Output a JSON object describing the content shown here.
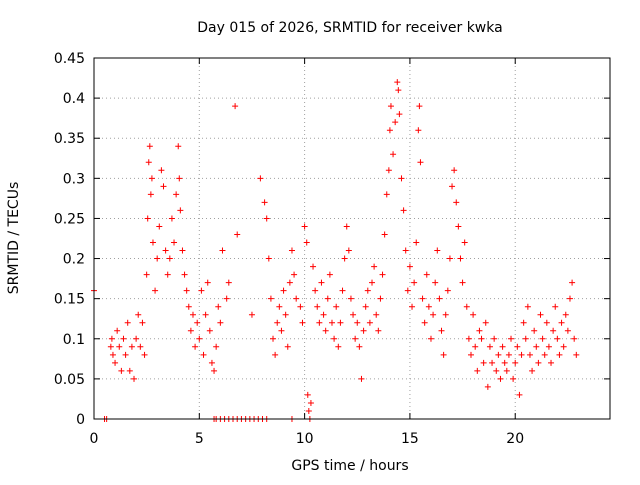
{
  "chart_data": {
    "type": "scatter",
    "title": "Day 015 of 2026, SRMTID for receiver kwka",
    "xlabel": "GPS time / hours",
    "ylabel": "SRMTID / TECUs",
    "xlim": [
      0,
      24.5
    ],
    "ylim": [
      0,
      0.45
    ],
    "x_ticks": [
      0,
      5,
      10,
      15,
      20
    ],
    "x_tick_labels": [
      "0",
      "5",
      "10",
      "15",
      "20"
    ],
    "y_ticks": [
      0,
      0.05,
      0.1,
      0.15,
      0.2,
      0.25,
      0.3,
      0.35,
      0.4,
      0.45
    ],
    "y_tick_labels": [
      "0",
      "0.05",
      "0.1",
      "0.15",
      "0.2",
      "0.25",
      "0.3",
      "0.35",
      "0.4",
      "0.45"
    ],
    "grid": true,
    "marker": "plus",
    "marker_color": "#ff0000",
    "series": [
      {
        "name": "SRMTID",
        "points": [
          [
            0.0,
            0.16
          ],
          [
            0.5,
            0.0
          ],
          [
            0.6,
            0.0
          ],
          [
            0.8,
            0.09
          ],
          [
            0.85,
            0.1
          ],
          [
            0.9,
            0.08
          ],
          [
            1.0,
            0.07
          ],
          [
            1.1,
            0.11
          ],
          [
            1.2,
            0.09
          ],
          [
            1.3,
            0.06
          ],
          [
            1.4,
            0.1
          ],
          [
            1.5,
            0.08
          ],
          [
            1.6,
            0.12
          ],
          [
            1.7,
            0.06
          ],
          [
            1.8,
            0.09
          ],
          [
            1.9,
            0.05
          ],
          [
            2.0,
            0.1
          ],
          [
            2.1,
            0.13
          ],
          [
            2.2,
            0.09
          ],
          [
            2.3,
            0.12
          ],
          [
            2.4,
            0.08
          ],
          [
            2.5,
            0.18
          ],
          [
            2.55,
            0.25
          ],
          [
            2.6,
            0.32
          ],
          [
            2.65,
            0.34
          ],
          [
            2.7,
            0.28
          ],
          [
            2.75,
            0.3
          ],
          [
            2.8,
            0.22
          ],
          [
            2.9,
            0.16
          ],
          [
            3.0,
            0.2
          ],
          [
            3.1,
            0.24
          ],
          [
            3.2,
            0.31
          ],
          [
            3.3,
            0.29
          ],
          [
            3.4,
            0.21
          ],
          [
            3.5,
            0.18
          ],
          [
            3.6,
            0.2
          ],
          [
            3.7,
            0.25
          ],
          [
            3.8,
            0.22
          ],
          [
            3.9,
            0.28
          ],
          [
            4.0,
            0.34
          ],
          [
            4.05,
            0.3
          ],
          [
            4.1,
            0.26
          ],
          [
            4.2,
            0.21
          ],
          [
            4.3,
            0.18
          ],
          [
            4.4,
            0.16
          ],
          [
            4.5,
            0.14
          ],
          [
            4.6,
            0.11
          ],
          [
            4.7,
            0.13
          ],
          [
            4.8,
            0.09
          ],
          [
            4.9,
            0.12
          ],
          [
            5.0,
            0.1
          ],
          [
            5.1,
            0.16
          ],
          [
            5.2,
            0.08
          ],
          [
            5.3,
            0.13
          ],
          [
            5.4,
            0.17
          ],
          [
            5.5,
            0.11
          ],
          [
            5.6,
            0.07
          ],
          [
            5.7,
            0.06
          ],
          [
            5.8,
            0.09
          ],
          [
            5.9,
            0.14
          ],
          [
            6.0,
            0.12
          ],
          [
            6.1,
            0.21
          ],
          [
            6.3,
            0.15
          ],
          [
            6.4,
            0.17
          ],
          [
            5.7,
            0.0
          ],
          [
            5.8,
            0.0
          ],
          [
            6.0,
            0.0
          ],
          [
            6.2,
            0.0
          ],
          [
            6.4,
            0.0
          ],
          [
            6.6,
            0.0
          ],
          [
            6.8,
            0.0
          ],
          [
            6.7,
            0.39
          ],
          [
            6.8,
            0.23
          ],
          [
            7.0,
            0.0
          ],
          [
            7.2,
            0.0
          ],
          [
            7.4,
            0.0
          ],
          [
            7.5,
            0.13
          ],
          [
            7.6,
            0.0
          ],
          [
            7.8,
            0.0
          ],
          [
            8.0,
            0.0
          ],
          [
            8.2,
            0.0
          ],
          [
            7.9,
            0.3
          ],
          [
            8.1,
            0.27
          ],
          [
            8.2,
            0.25
          ],
          [
            8.3,
            0.2
          ],
          [
            8.4,
            0.15
          ],
          [
            8.5,
            0.1
          ],
          [
            8.6,
            0.08
          ],
          [
            8.7,
            0.12
          ],
          [
            8.8,
            0.14
          ],
          [
            8.9,
            0.11
          ],
          [
            9.0,
            0.16
          ],
          [
            9.1,
            0.13
          ],
          [
            9.2,
            0.09
          ],
          [
            9.3,
            0.17
          ],
          [
            9.4,
            0.21
          ],
          [
            9.5,
            0.18
          ],
          [
            9.6,
            0.15
          ],
          [
            9.4,
            0.0
          ],
          [
            9.8,
            0.14
          ],
          [
            9.9,
            0.12
          ],
          [
            10.0,
            0.24
          ],
          [
            10.1,
            0.22
          ],
          [
            10.15,
            0.03
          ],
          [
            10.2,
            0.01
          ],
          [
            10.25,
            0.0
          ],
          [
            10.3,
            0.02
          ],
          [
            10.4,
            0.19
          ],
          [
            10.5,
            0.16
          ],
          [
            10.6,
            0.14
          ],
          [
            10.7,
            0.12
          ],
          [
            10.8,
            0.17
          ],
          [
            10.9,
            0.13
          ],
          [
            11.0,
            0.11
          ],
          [
            11.1,
            0.15
          ],
          [
            11.2,
            0.18
          ],
          [
            11.3,
            0.12
          ],
          [
            11.4,
            0.1
          ],
          [
            11.5,
            0.14
          ],
          [
            11.6,
            0.09
          ],
          [
            11.7,
            0.12
          ],
          [
            11.8,
            0.16
          ],
          [
            11.9,
            0.2
          ],
          [
            12.0,
            0.24
          ],
          [
            12.1,
            0.21
          ],
          [
            12.2,
            0.15
          ],
          [
            12.3,
            0.13
          ],
          [
            12.4,
            0.1
          ],
          [
            12.5,
            0.12
          ],
          [
            12.6,
            0.09
          ],
          [
            12.7,
            0.05
          ],
          [
            12.8,
            0.11
          ],
          [
            12.9,
            0.14
          ],
          [
            13.0,
            0.16
          ],
          [
            13.1,
            0.12
          ],
          [
            13.2,
            0.17
          ],
          [
            13.3,
            0.19
          ],
          [
            13.4,
            0.13
          ],
          [
            13.5,
            0.11
          ],
          [
            13.6,
            0.15
          ],
          [
            13.7,
            0.18
          ],
          [
            13.8,
            0.23
          ],
          [
            13.9,
            0.28
          ],
          [
            14.0,
            0.31
          ],
          [
            14.05,
            0.36
          ],
          [
            14.1,
            0.39
          ],
          [
            14.2,
            0.33
          ],
          [
            14.3,
            0.37
          ],
          [
            14.4,
            0.42
          ],
          [
            14.45,
            0.41
          ],
          [
            14.5,
            0.38
          ],
          [
            14.6,
            0.3
          ],
          [
            14.7,
            0.26
          ],
          [
            14.8,
            0.21
          ],
          [
            14.9,
            0.16
          ],
          [
            15.0,
            0.19
          ],
          [
            15.1,
            0.14
          ],
          [
            15.2,
            0.17
          ],
          [
            15.3,
            0.22
          ],
          [
            15.4,
            0.36
          ],
          [
            15.45,
            0.39
          ],
          [
            15.5,
            0.32
          ],
          [
            15.6,
            0.15
          ],
          [
            15.7,
            0.12
          ],
          [
            15.8,
            0.18
          ],
          [
            15.9,
            0.14
          ],
          [
            16.0,
            0.1
          ],
          [
            16.1,
            0.13
          ],
          [
            16.2,
            0.17
          ],
          [
            16.3,
            0.21
          ],
          [
            16.4,
            0.15
          ],
          [
            16.5,
            0.11
          ],
          [
            16.6,
            0.08
          ],
          [
            16.7,
            0.13
          ],
          [
            16.8,
            0.16
          ],
          [
            16.9,
            0.2
          ],
          [
            17.0,
            0.29
          ],
          [
            17.1,
            0.31
          ],
          [
            17.2,
            0.27
          ],
          [
            17.3,
            0.24
          ],
          [
            17.4,
            0.2
          ],
          [
            17.5,
            0.17
          ],
          [
            17.6,
            0.22
          ],
          [
            17.7,
            0.14
          ],
          [
            17.8,
            0.1
          ],
          [
            17.9,
            0.08
          ],
          [
            18.0,
            0.13
          ],
          [
            18.1,
            0.09
          ],
          [
            18.2,
            0.06
          ],
          [
            18.3,
            0.11
          ],
          [
            18.4,
            0.1
          ],
          [
            18.5,
            0.07
          ],
          [
            18.6,
            0.12
          ],
          [
            18.7,
            0.04
          ],
          [
            18.8,
            0.09
          ],
          [
            18.9,
            0.07
          ],
          [
            19.0,
            0.1
          ],
          [
            19.1,
            0.06
          ],
          [
            19.2,
            0.08
          ],
          [
            19.3,
            0.05
          ],
          [
            19.4,
            0.09
          ],
          [
            19.5,
            0.07
          ],
          [
            19.6,
            0.06
          ],
          [
            19.7,
            0.08
          ],
          [
            19.8,
            0.1
          ],
          [
            19.9,
            0.05
          ],
          [
            20.0,
            0.07
          ],
          [
            20.1,
            0.09
          ],
          [
            20.2,
            0.03
          ],
          [
            20.3,
            0.08
          ],
          [
            20.4,
            0.12
          ],
          [
            20.5,
            0.1
          ],
          [
            20.6,
            0.14
          ],
          [
            20.7,
            0.08
          ],
          [
            20.8,
            0.06
          ],
          [
            20.9,
            0.11
          ],
          [
            21.0,
            0.09
          ],
          [
            21.1,
            0.07
          ],
          [
            21.2,
            0.13
          ],
          [
            21.3,
            0.1
          ],
          [
            21.4,
            0.08
          ],
          [
            21.5,
            0.12
          ],
          [
            21.6,
            0.09
          ],
          [
            21.7,
            0.07
          ],
          [
            21.8,
            0.11
          ],
          [
            21.9,
            0.14
          ],
          [
            22.0,
            0.1
          ],
          [
            22.1,
            0.08
          ],
          [
            22.2,
            0.12
          ],
          [
            22.3,
            0.09
          ],
          [
            22.4,
            0.13
          ],
          [
            22.5,
            0.11
          ],
          [
            22.6,
            0.15
          ],
          [
            22.7,
            0.17
          ],
          [
            22.8,
            0.1
          ],
          [
            22.9,
            0.08
          ]
        ]
      }
    ]
  }
}
